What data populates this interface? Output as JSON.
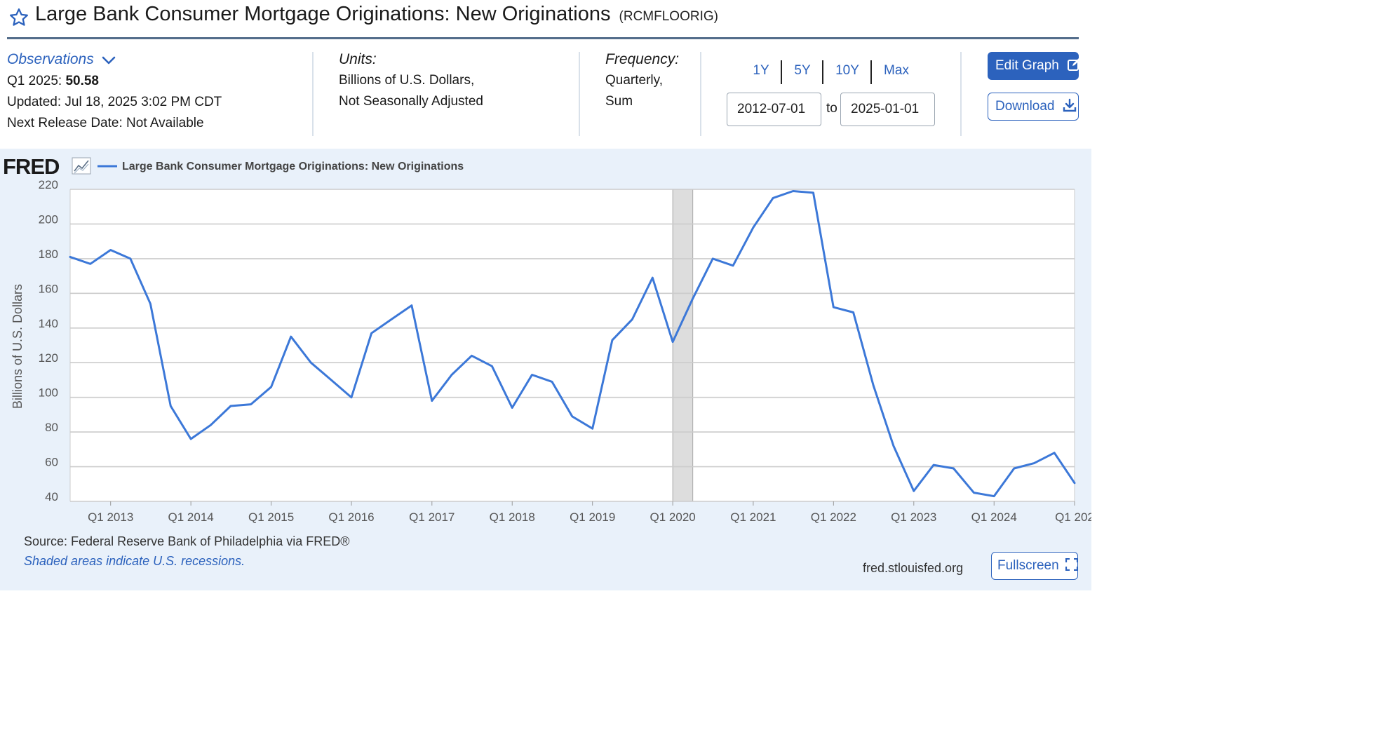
{
  "header": {
    "title": "Large Bank Consumer Mortgage Originations: New Originations",
    "series_id": "(RCMFLOORIG)"
  },
  "meta": {
    "observations_label": "Observations",
    "latest_period": "Q1 2025:",
    "latest_value": "50.58",
    "updated": "Updated: Jul 18, 2025 3:02 PM CDT",
    "next_release": "Next Release Date: Not Available",
    "units_label": "Units:",
    "units_line1": "Billions of U.S. Dollars,",
    "units_line2": "Not Seasonally Adjusted",
    "frequency_label": "Frequency:",
    "frequency_line1": "Quarterly,",
    "frequency_line2": "Sum"
  },
  "controls": {
    "ranges": [
      "1Y",
      "5Y",
      "10Y",
      "Max"
    ],
    "start_date": "2012-07-01",
    "to_label": "to",
    "end_date": "2025-01-01",
    "edit_graph_label": "Edit Graph",
    "download_label": "Download",
    "fullscreen_label": "Fullscreen"
  },
  "footer": {
    "source": "Source: Federal Reserve Bank of Philadelphia via FRED®",
    "recession_note": "Shaded areas indicate U.S. recessions.",
    "site": "fred.stlouisfed.org"
  },
  "colors": {
    "series": "#3c78d8",
    "accent": "#2c62bd",
    "panel_bg": "#e9f1fa",
    "recession": "#dddddd"
  },
  "chart_data": {
    "type": "line",
    "brand": "FRED",
    "ylabel": "Billions of U.S. Dollars",
    "ylim": [
      40,
      220
    ],
    "yticks": [
      40,
      60,
      80,
      100,
      120,
      140,
      160,
      180,
      200,
      220
    ],
    "grid": true,
    "legend_position": "top-left",
    "x_start": "2012-07-01",
    "x_end": "2025-01-01",
    "xtick_labels": [
      "Q1 2013",
      "Q1 2014",
      "Q1 2015",
      "Q1 2016",
      "Q1 2017",
      "Q1 2018",
      "Q1 2019",
      "Q1 2020",
      "Q1 2021",
      "Q1 2022",
      "Q1 2023",
      "Q1 2024",
      "Q1 202"
    ],
    "recessions": [
      {
        "start": "2020-01-01",
        "end": "2020-04-01"
      }
    ],
    "series": [
      {
        "name": "Large Bank Consumer Mortgage Originations: New Originations",
        "color": "#3c78d8",
        "points": [
          [
            "2012-07-01",
            181
          ],
          [
            "2012-10-01",
            177
          ],
          [
            "2013-01-01",
            185
          ],
          [
            "2013-04-01",
            180
          ],
          [
            "2013-07-01",
            154
          ],
          [
            "2013-10-01",
            95
          ],
          [
            "2014-01-01",
            76
          ],
          [
            "2014-04-01",
            84
          ],
          [
            "2014-07-01",
            95
          ],
          [
            "2014-10-01",
            96
          ],
          [
            "2015-01-01",
            106
          ],
          [
            "2015-04-01",
            135
          ],
          [
            "2015-07-01",
            120
          ],
          [
            "2015-10-01",
            110
          ],
          [
            "2016-01-01",
            100
          ],
          [
            "2016-04-01",
            137
          ],
          [
            "2016-07-01",
            145
          ],
          [
            "2016-10-01",
            153
          ],
          [
            "2017-01-01",
            98
          ],
          [
            "2017-04-01",
            113
          ],
          [
            "2017-07-01",
            124
          ],
          [
            "2017-10-01",
            118
          ],
          [
            "2018-01-01",
            94
          ],
          [
            "2018-04-01",
            113
          ],
          [
            "2018-07-01",
            109
          ],
          [
            "2018-10-01",
            89
          ],
          [
            "2019-01-01",
            82
          ],
          [
            "2019-04-01",
            133
          ],
          [
            "2019-07-01",
            145
          ],
          [
            "2019-10-01",
            169
          ],
          [
            "2020-01-01",
            132
          ],
          [
            "2020-04-01",
            157
          ],
          [
            "2020-07-01",
            180
          ],
          [
            "2020-10-01",
            176
          ],
          [
            "2021-01-01",
            198
          ],
          [
            "2021-04-01",
            215
          ],
          [
            "2021-07-01",
            219
          ],
          [
            "2021-10-01",
            218
          ],
          [
            "2022-01-01",
            152
          ],
          [
            "2022-04-01",
            149
          ],
          [
            "2022-07-01",
            107
          ],
          [
            "2022-10-01",
            72
          ],
          [
            "2023-01-01",
            46
          ],
          [
            "2023-04-01",
            61
          ],
          [
            "2023-07-01",
            59
          ],
          [
            "2023-10-01",
            45
          ],
          [
            "2024-01-01",
            43
          ],
          [
            "2024-04-01",
            59
          ],
          [
            "2024-07-01",
            62
          ],
          [
            "2024-10-01",
            68
          ],
          [
            "2025-01-01",
            50.58
          ]
        ]
      }
    ]
  }
}
